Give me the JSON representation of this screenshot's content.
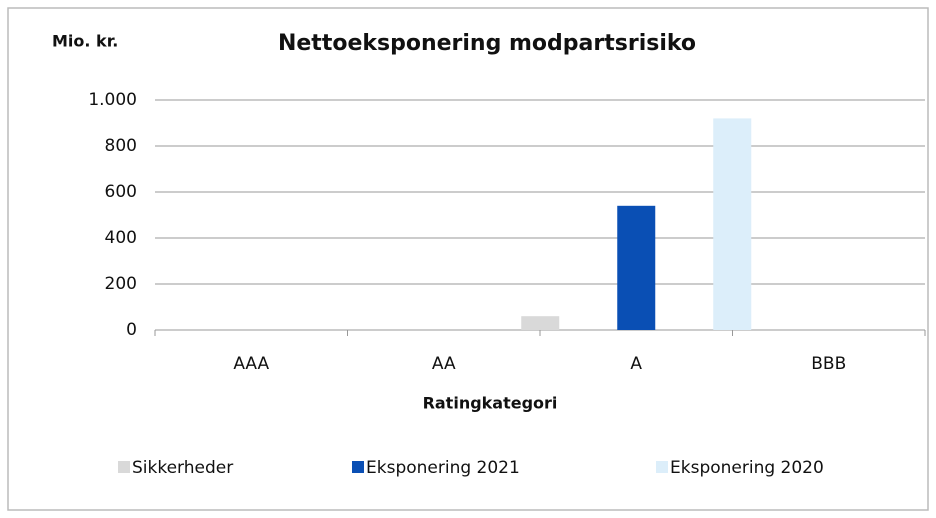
{
  "chart_data": {
    "type": "bar",
    "title": "Nettoeksponering modpartsrisiko",
    "y_axis_label": "Mio. kr.",
    "x_axis_label": "Ratingkategori",
    "categories": [
      "AAA",
      "AA",
      "A",
      "BBB"
    ],
    "series": [
      {
        "name": "Sikkerheder",
        "color": "#d9d9d9",
        "values": [
          0,
          0,
          60,
          0
        ]
      },
      {
        "name": "Eksponering 2021",
        "color": "#0a4fb4",
        "values": [
          0,
          0,
          540,
          0
        ]
      },
      {
        "name": "Eksponering 2020",
        "color": "#dceefa",
        "values": [
          0,
          0,
          920,
          0
        ]
      }
    ],
    "ylim": [
      0,
      1000
    ],
    "yticks": [
      0,
      200,
      400,
      600,
      800,
      {
        "value": 1000,
        "label": "1.000"
      }
    ],
    "grid": true,
    "legend": "bottom"
  }
}
